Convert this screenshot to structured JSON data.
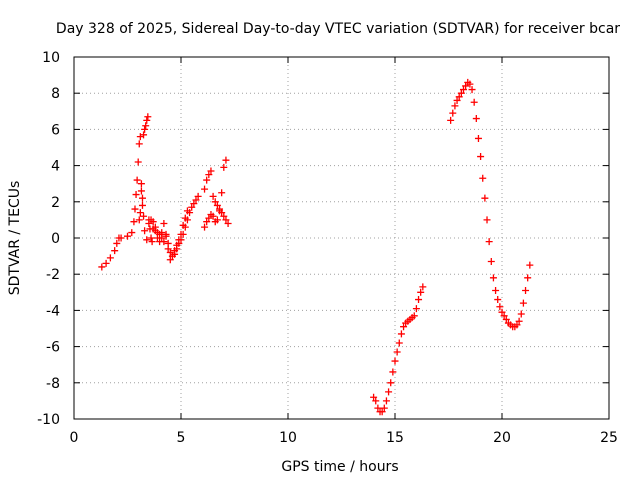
{
  "chart_data": {
    "type": "scatter",
    "title": "Day 328 of 2025, Sidereal Day-to-day VTEC variation (SDTVAR) for receiver bcar",
    "xlabel": "GPS time / hours",
    "ylabel": "SDTVAR / TECUs",
    "xlim": [
      0,
      25
    ],
    "ylim": [
      -10,
      10
    ],
    "xticks": [
      0,
      5,
      10,
      15,
      20,
      25
    ],
    "yticks": [
      -10,
      -8,
      -6,
      -4,
      -2,
      0,
      2,
      4,
      6,
      8,
      10
    ],
    "grid": true,
    "marker": "+",
    "color": "#ff0000",
    "series": [
      {
        "x": [
          1.3,
          1.5,
          1.7,
          1.9,
          2.0,
          2.1,
          2.2,
          2.5,
          2.7,
          2.8,
          2.85,
          2.9,
          2.95,
          3.0,
          3.05,
          3.1,
          3.15,
          3.2,
          3.25,
          3.3,
          3.35,
          3.4,
          3.45,
          3.5,
          3.55,
          3.6,
          3.65,
          3.7,
          3.8,
          3.9,
          4.0,
          4.1,
          4.2,
          4.3,
          4.4,
          4.5,
          4.6,
          4.7,
          4.8,
          4.9,
          5.0,
          5.1,
          5.2,
          5.3,
          5.4,
          5.5,
          5.6,
          5.7,
          5.8
        ],
        "y": [
          -1.6,
          -1.4,
          -1.1,
          -0.7,
          -0.3,
          0.0,
          0.0,
          0.1,
          0.3,
          0.9,
          1.6,
          2.4,
          3.2,
          4.2,
          5.2,
          5.6,
          3.0,
          2.2,
          5.7,
          6.0,
          6.2,
          6.5,
          6.7,
          1.0,
          0.5,
          0.0,
          -0.2,
          0.5,
          0.4,
          0.0,
          -0.2,
          0.3,
          0.8,
          0.2,
          -0.3,
          -0.8,
          -1.0,
          -0.9,
          -0.6,
          -0.3,
          -0.1,
          0.2,
          0.6,
          1.0,
          1.4,
          1.7,
          1.9,
          2.1,
          2.3
        ]
      },
      {
        "x": [
          3.05,
          3.1,
          3.15,
          3.2,
          3.25,
          3.3,
          3.4,
          3.5,
          3.6,
          3.7,
          3.8,
          3.9,
          4.0,
          4.1,
          4.2,
          4.3,
          4.4,
          4.5,
          4.6,
          4.7,
          4.8,
          4.9,
          5.0,
          5.1,
          5.2,
          5.3
        ],
        "y": [
          1.0,
          1.4,
          2.6,
          1.8,
          1.2,
          0.4,
          -0.1,
          0.8,
          1.0,
          0.9,
          0.6,
          0.3,
          0.2,
          0.0,
          -0.2,
          0.1,
          -0.6,
          -1.2,
          -1.0,
          -0.7,
          -0.4,
          -0.1,
          0.2,
          0.7,
          1.1,
          1.5
        ]
      },
      {
        "x": [
          6.1,
          6.2,
          6.3,
          6.4,
          6.5,
          6.6,
          6.7,
          6.8,
          6.9,
          7.0,
          7.1
        ],
        "y": [
          0.6,
          0.9,
          1.1,
          1.3,
          1.2,
          0.9,
          1.0,
          1.5,
          2.5,
          3.9,
          4.3
        ]
      },
      {
        "x": [
          6.1,
          6.2,
          6.3,
          6.4,
          6.5,
          6.6,
          6.7,
          6.8,
          6.9,
          7.0,
          7.1,
          7.2
        ],
        "y": [
          2.7,
          3.2,
          3.5,
          3.7,
          2.3,
          2.0,
          1.8,
          1.6,
          1.4,
          1.2,
          1.0,
          0.8
        ]
      },
      {
        "x": [
          14.0,
          14.1,
          14.2,
          14.3,
          14.4,
          14.5,
          14.6,
          14.7,
          14.8,
          14.9,
          15.0,
          15.1,
          15.2,
          15.3,
          15.4,
          15.5,
          15.6,
          15.7,
          15.8,
          15.9,
          16.0,
          16.1,
          16.2,
          16.3
        ],
        "y": [
          -8.8,
          -9.0,
          -9.4,
          -9.6,
          -9.6,
          -9.4,
          -9.0,
          -8.5,
          -8.0,
          -7.4,
          -6.8,
          -6.3,
          -5.8,
          -5.3,
          -4.9,
          -4.7,
          -4.6,
          -4.5,
          -4.4,
          -4.3,
          -3.9,
          -3.4,
          -3.0,
          -2.7
        ]
      },
      {
        "x": [
          17.6,
          17.7,
          17.8,
          17.9,
          18.0,
          18.1,
          18.2,
          18.3,
          18.4,
          18.5,
          18.6,
          18.7,
          18.8,
          18.9,
          19.0,
          19.1,
          19.2,
          19.3,
          19.4,
          19.5,
          19.6,
          19.7,
          19.8,
          19.9,
          20.0,
          20.1,
          20.2,
          20.3,
          20.4,
          20.5,
          20.6,
          20.7,
          20.8,
          20.9,
          21.0,
          21.1,
          21.2,
          21.3
        ],
        "y": [
          6.5,
          6.9,
          7.3,
          7.6,
          7.8,
          8.0,
          8.2,
          8.4,
          8.6,
          8.5,
          8.2,
          7.5,
          6.6,
          5.5,
          4.5,
          3.3,
          2.2,
          1.0,
          -0.2,
          -1.3,
          -2.2,
          -2.9,
          -3.4,
          -3.8,
          -4.1,
          -4.3,
          -4.5,
          -4.7,
          -4.8,
          -4.9,
          -4.9,
          -4.8,
          -4.6,
          -4.2,
          -3.6,
          -2.9,
          -2.2,
          -1.5
        ]
      }
    ]
  }
}
